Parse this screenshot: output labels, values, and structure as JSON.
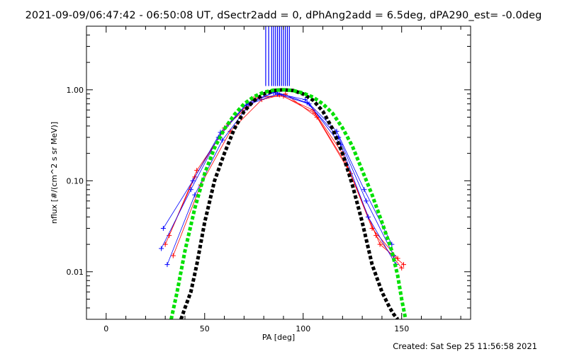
{
  "header": {
    "title": "2021-09-09/06:47:42 - 06:50:08 UT, dSectr2add = 0, dPhAng2add = 6.5deg, dPA290_est= -0.0deg"
  },
  "footer": {
    "created": "Created: Sat Sep 25 11:56:58 2021"
  },
  "chart_data": {
    "type": "line",
    "xlabel": "PA [deg]",
    "ylabel": "nflux [#/(cm^2 s sr MeV)]",
    "xlim": [
      -10,
      185
    ],
    "ylim": [
      0.003,
      5
    ],
    "yscale": "log",
    "x_ticks": [
      {
        "value": 0,
        "label": "0"
      },
      {
        "value": 50,
        "label": "50"
      },
      {
        "value": 100,
        "label": "100"
      },
      {
        "value": 150,
        "label": "150"
      }
    ],
    "y_ticks": [
      {
        "value": 0.01,
        "label": "0.01"
      },
      {
        "value": 0.1,
        "label": "0.10"
      },
      {
        "value": 1,
        "label": "1.00"
      }
    ],
    "colors": {
      "red_series": "#ff0000",
      "blue_series": "#0000ff",
      "black_fit": "#000000",
      "green_fit": "#00e000"
    },
    "series": [
      {
        "color": "red",
        "style": "line+plus",
        "curves": [
          {
            "x": [
              30,
              45,
              60,
              75,
              88,
              105,
              120,
              135,
              148
            ],
            "y": [
              0.02,
              0.11,
              0.38,
              0.8,
              0.88,
              0.6,
              0.2,
              0.03,
              0.014
            ]
          },
          {
            "x": [
              32,
              46,
              62,
              78,
              90,
              106,
              122,
              137,
              150
            ],
            "y": [
              0.025,
              0.13,
              0.42,
              0.83,
              0.85,
              0.55,
              0.15,
              0.025,
              0.011
            ]
          },
          {
            "x": [
              34,
              48,
              63,
              79,
              91,
              107,
              124,
              139,
              151
            ],
            "y": [
              0.015,
              0.09,
              0.35,
              0.78,
              0.9,
              0.5,
              0.12,
              0.02,
              0.012
            ]
          }
        ]
      },
      {
        "color": "blue",
        "style": "line+plus",
        "curves": [
          {
            "x": [
              29,
              44,
              58,
              72,
              86,
              102,
              118,
              132,
              146
            ],
            "y": [
              0.03,
              0.1,
              0.34,
              0.72,
              0.95,
              0.72,
              0.3,
              0.06,
              0.015
            ]
          },
          {
            "x": [
              28,
              43,
              57,
              71,
              85,
              101,
              117,
              131,
              145
            ],
            "y": [
              0.018,
              0.08,
              0.3,
              0.68,
              0.93,
              0.78,
              0.35,
              0.08,
              0.02
            ]
          },
          {
            "x": [
              31,
              45,
              59,
              73,
              87,
              103,
              119,
              133,
              147
            ],
            "y": [
              0.012,
              0.07,
              0.28,
              0.7,
              0.9,
              0.7,
              0.25,
              0.04,
              0.012
            ]
          }
        ]
      },
      {
        "color": "black",
        "style": "dashed-thick",
        "x": [
          38,
          40,
          43,
          46,
          50,
          55,
          60,
          65,
          70,
          75,
          80,
          85,
          90,
          95,
          100,
          105,
          110,
          115,
          120,
          125,
          130,
          135,
          140,
          144,
          146,
          148
        ],
        "y": [
          0.003,
          0.004,
          0.006,
          0.012,
          0.035,
          0.1,
          0.2,
          0.37,
          0.58,
          0.76,
          0.9,
          0.98,
          1.0,
          0.98,
          0.9,
          0.77,
          0.58,
          0.37,
          0.2,
          0.09,
          0.035,
          0.012,
          0.006,
          0.004,
          0.0034,
          0.003
        ]
      },
      {
        "color": "green",
        "style": "dashed-thick",
        "x": [
          33,
          36,
          40,
          45,
          50,
          55,
          60,
          65,
          70,
          75,
          80,
          85,
          90,
          95,
          100,
          105,
          110,
          115,
          120,
          125,
          130,
          135,
          140,
          145,
          148,
          150,
          152
        ],
        "y": [
          0.003,
          0.006,
          0.017,
          0.05,
          0.12,
          0.23,
          0.37,
          0.53,
          0.7,
          0.84,
          0.94,
          0.99,
          1.0,
          0.98,
          0.92,
          0.83,
          0.7,
          0.55,
          0.38,
          0.24,
          0.13,
          0.07,
          0.035,
          0.017,
          0.009,
          0.005,
          0.003
        ]
      }
    ],
    "spikes": {
      "color": "blue",
      "x": [
        81,
        82.5,
        84,
        85,
        86,
        87,
        88,
        89,
        90,
        91,
        92,
        93
      ],
      "y_from": 1.1,
      "y_to": 5
    }
  }
}
